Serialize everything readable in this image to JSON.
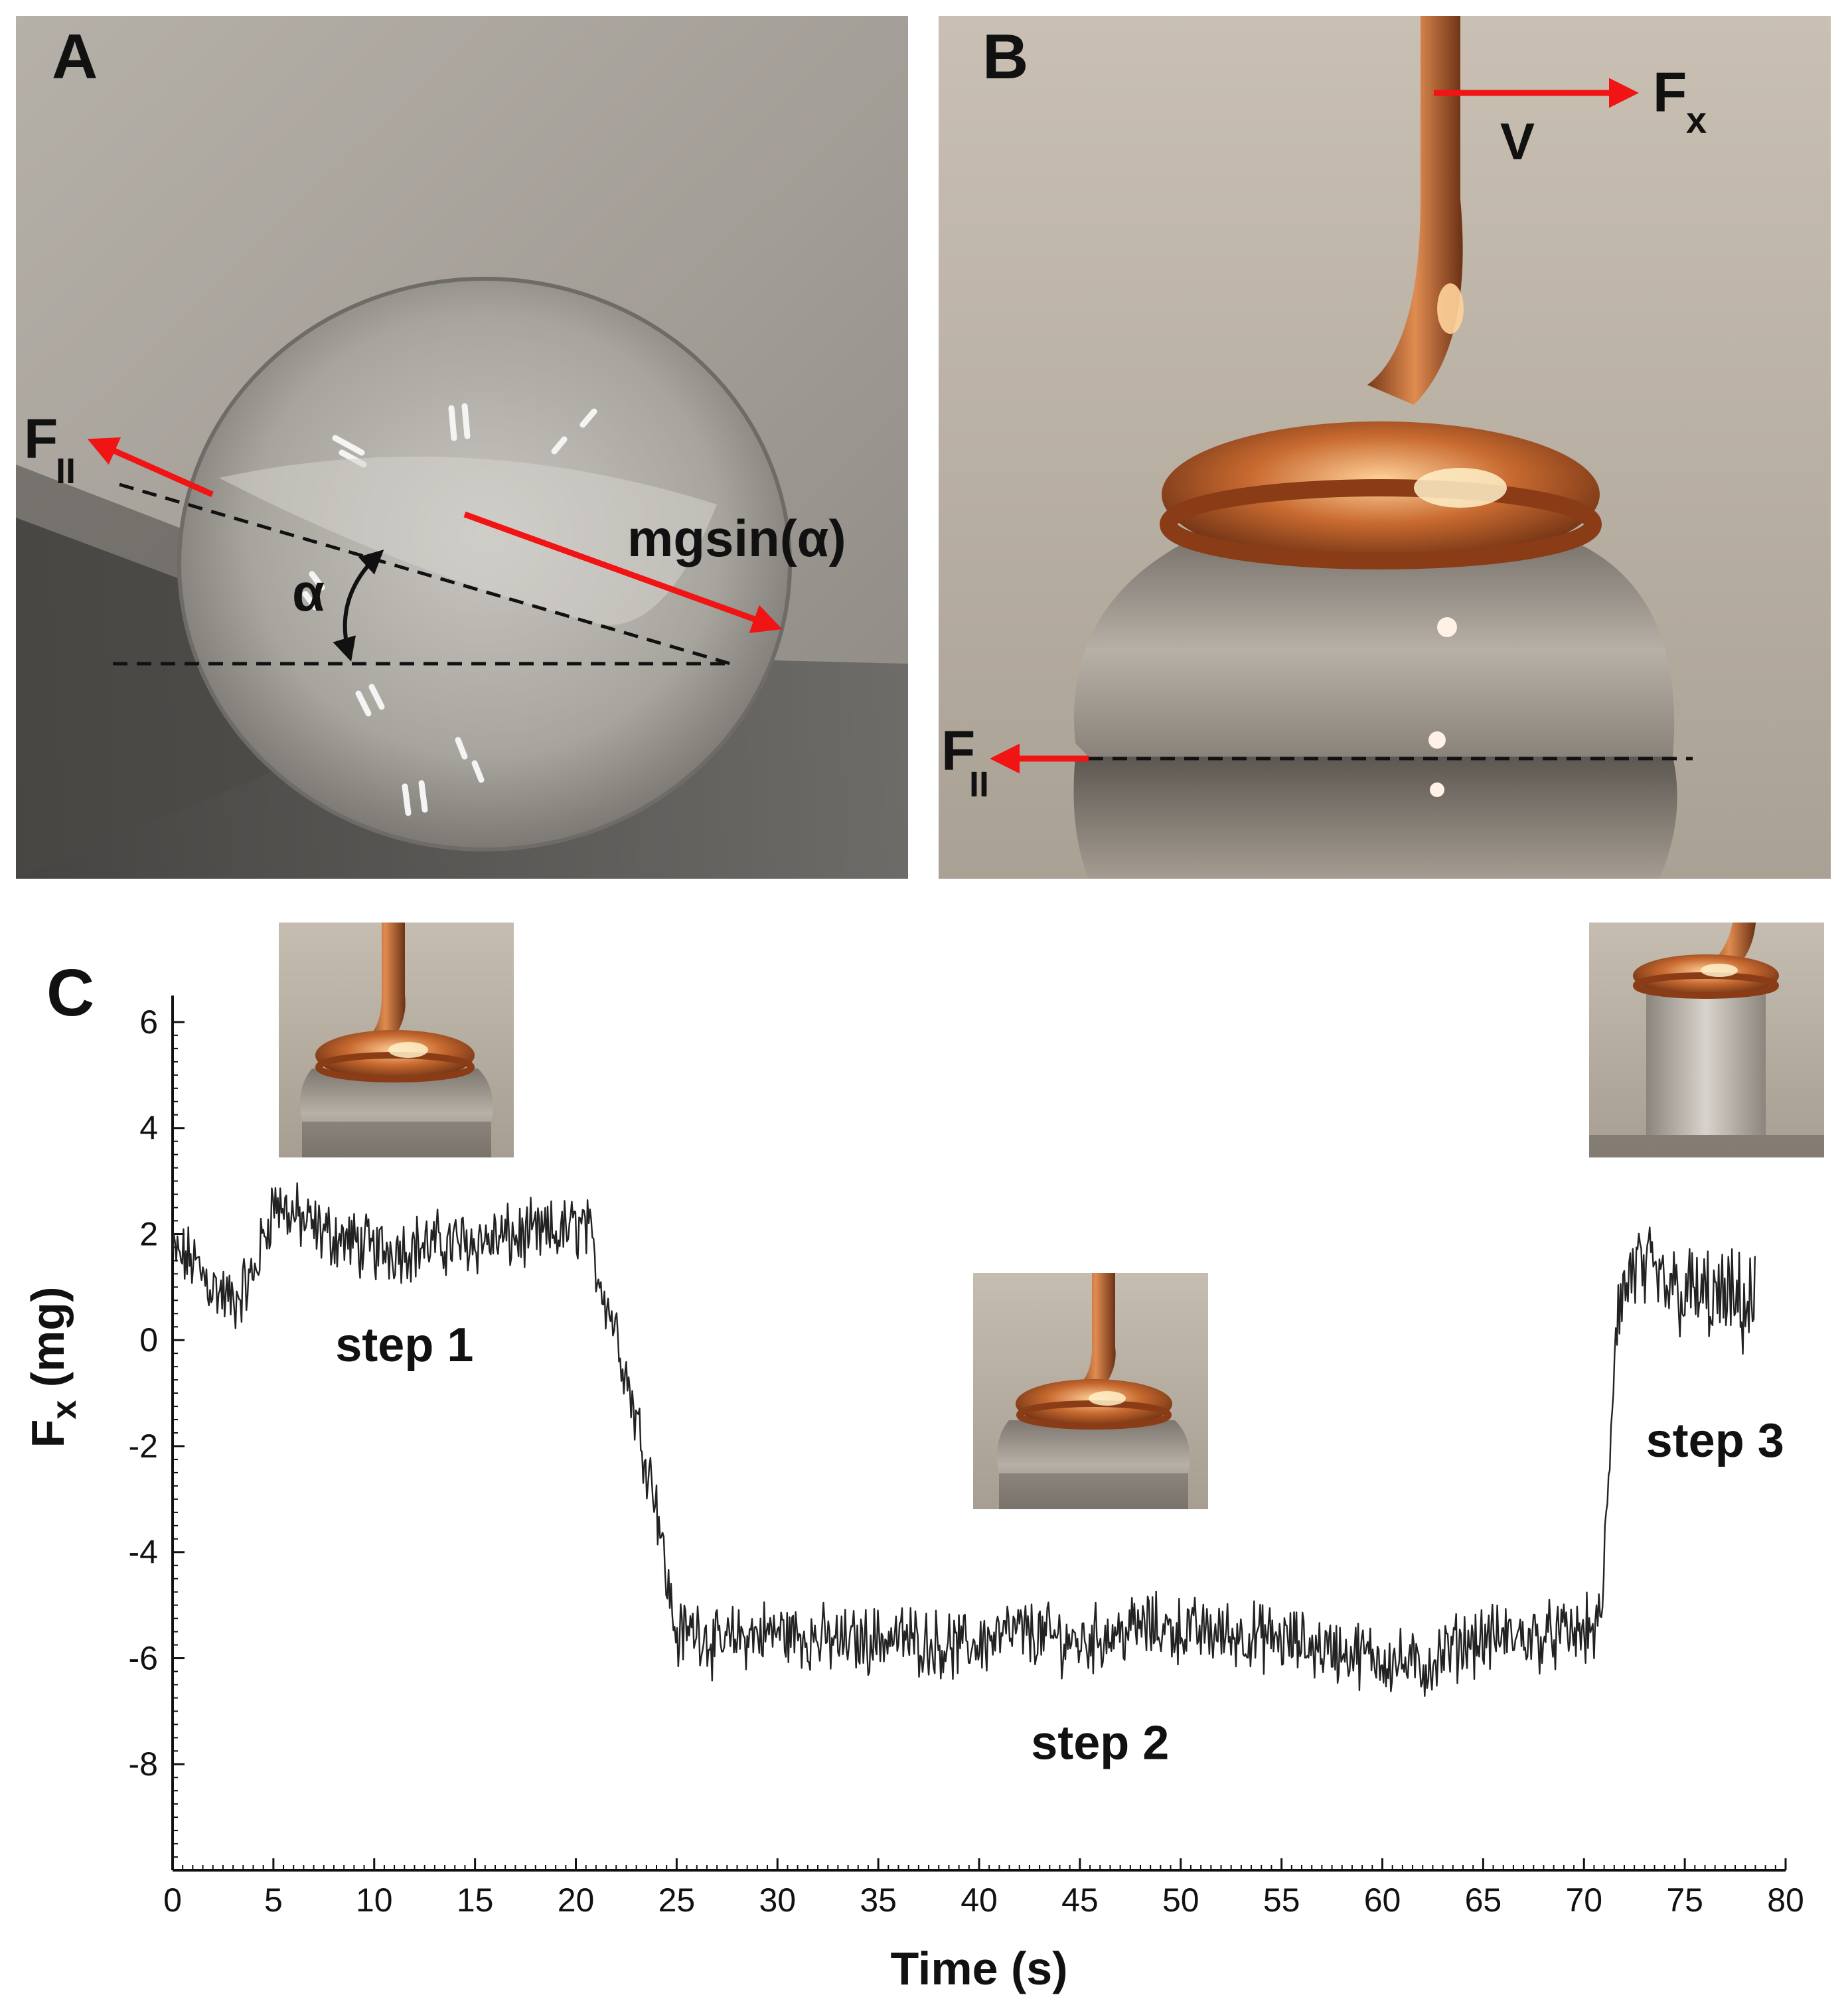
{
  "panels": {
    "a": {
      "letter": "A",
      "labels": {
        "f_par": "F",
        "f_par_sub": "II",
        "mgsin": "mgsin(α)",
        "alpha": "α"
      }
    },
    "b": {
      "letter": "B",
      "labels": {
        "fx": "F",
        "fx_sub": "x",
        "v": "V",
        "f_par": "F",
        "f_par_sub": "II"
      }
    },
    "c": {
      "letter": "C"
    }
  },
  "colors": {
    "arrow": "#f01414",
    "trace": "#222222",
    "axis": "#111111"
  },
  "chart_data": {
    "type": "line",
    "title": "",
    "xlabel": "Time (s)",
    "ylabel": "F",
    "ylabel_sub": "x",
    "ylabel_unit": " (mg)",
    "xlim": [
      0,
      80
    ],
    "ylim": [
      -10,
      6.5
    ],
    "xticks": [
      0,
      5,
      10,
      15,
      20,
      25,
      30,
      35,
      40,
      45,
      50,
      55,
      60,
      65,
      70,
      75,
      80
    ],
    "yticks": [
      6,
      4,
      2,
      0,
      -2,
      -4,
      -6,
      -8
    ],
    "series": [
      {
        "name": "Fx",
        "x": [
          0,
          1,
          2,
          3,
          4,
          5,
          7,
          10,
          13,
          16,
          19,
          20.5,
          21,
          22,
          23,
          24,
          24.5,
          25,
          26,
          27,
          28,
          30,
          33,
          36,
          39,
          42,
          45,
          48,
          51,
          54,
          57,
          60,
          62,
          64,
          66,
          68,
          70,
          70.8,
          71.2,
          71.6,
          72.5,
          74,
          76,
          78.5
        ],
        "y": [
          1.6,
          1.5,
          1.0,
          0.7,
          1.2,
          2.6,
          2.1,
          1.7,
          1.8,
          1.9,
          2.0,
          2.2,
          1.4,
          0.2,
          -1.5,
          -3.0,
          -4.5,
          -5.6,
          -5.4,
          -5.8,
          -5.6,
          -5.5,
          -5.7,
          -5.6,
          -5.8,
          -5.5,
          -5.7,
          -5.4,
          -5.5,
          -5.6,
          -5.8,
          -6.0,
          -6.2,
          -5.7,
          -5.6,
          -5.6,
          -5.5,
          -5.4,
          -3.0,
          0.5,
          1.4,
          1.0,
          0.8,
          0.6
        ]
      }
    ],
    "annotations": [
      {
        "text": "step 1",
        "x": 11.5,
        "y": -0.4
      },
      {
        "text": "step 2",
        "x": 46,
        "y": -7.9
      },
      {
        "text": "step 3",
        "x": 76.5,
        "y": -2.2
      }
    ]
  }
}
